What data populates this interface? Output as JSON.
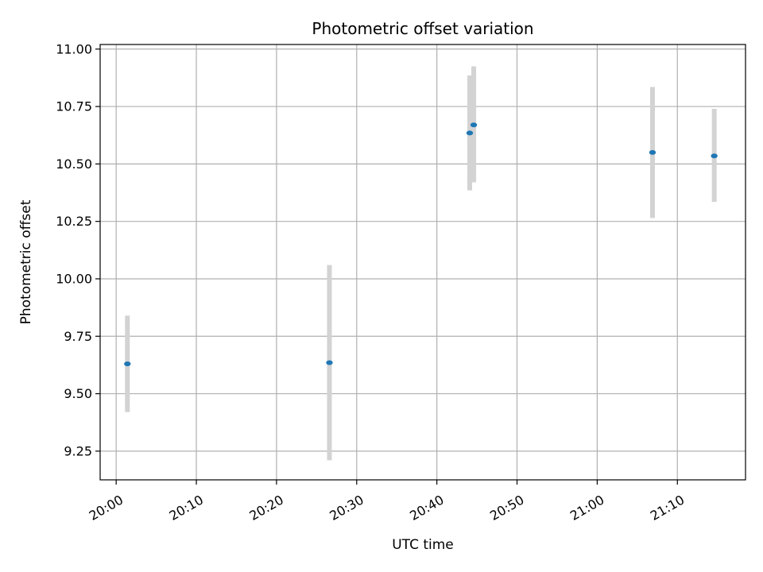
{
  "chart_data": {
    "type": "scatter",
    "title": "Photometric offset variation",
    "xlabel": "UTC time",
    "ylabel": "Photometric offset",
    "xlim": [
      "19:58:00",
      "21:18:30"
    ],
    "ylim": [
      9.125,
      11.02
    ],
    "x_ticks": [
      "20:00",
      "20:10",
      "20:20",
      "20:30",
      "20:40",
      "20:50",
      "21:00",
      "21:10"
    ],
    "y_ticks": [
      "9.25",
      "9.50",
      "9.75",
      "10.00",
      "10.25",
      "10.50",
      "10.75",
      "11.00"
    ],
    "grid": true,
    "series": [
      {
        "marker_color": "#1f77b4",
        "errorbar_color": "#d3d3d3",
        "points": [
          {
            "x": "20:01:24",
            "y": 9.63,
            "yerr_low": 9.42,
            "yerr_high": 9.84
          },
          {
            "x": "20:26:36",
            "y": 9.635,
            "yerr_low": 9.21,
            "yerr_high": 10.06
          },
          {
            "x": "20:44:06",
            "y": 10.635,
            "yerr_low": 10.385,
            "yerr_high": 10.885
          },
          {
            "x": "20:44:36",
            "y": 10.67,
            "yerr_low": 10.42,
            "yerr_high": 10.925
          },
          {
            "x": "21:06:54",
            "y": 10.55,
            "yerr_low": 10.265,
            "yerr_high": 10.835
          },
          {
            "x": "21:14:36",
            "y": 10.535,
            "yerr_low": 10.335,
            "yerr_high": 10.74
          }
        ]
      }
    ]
  }
}
